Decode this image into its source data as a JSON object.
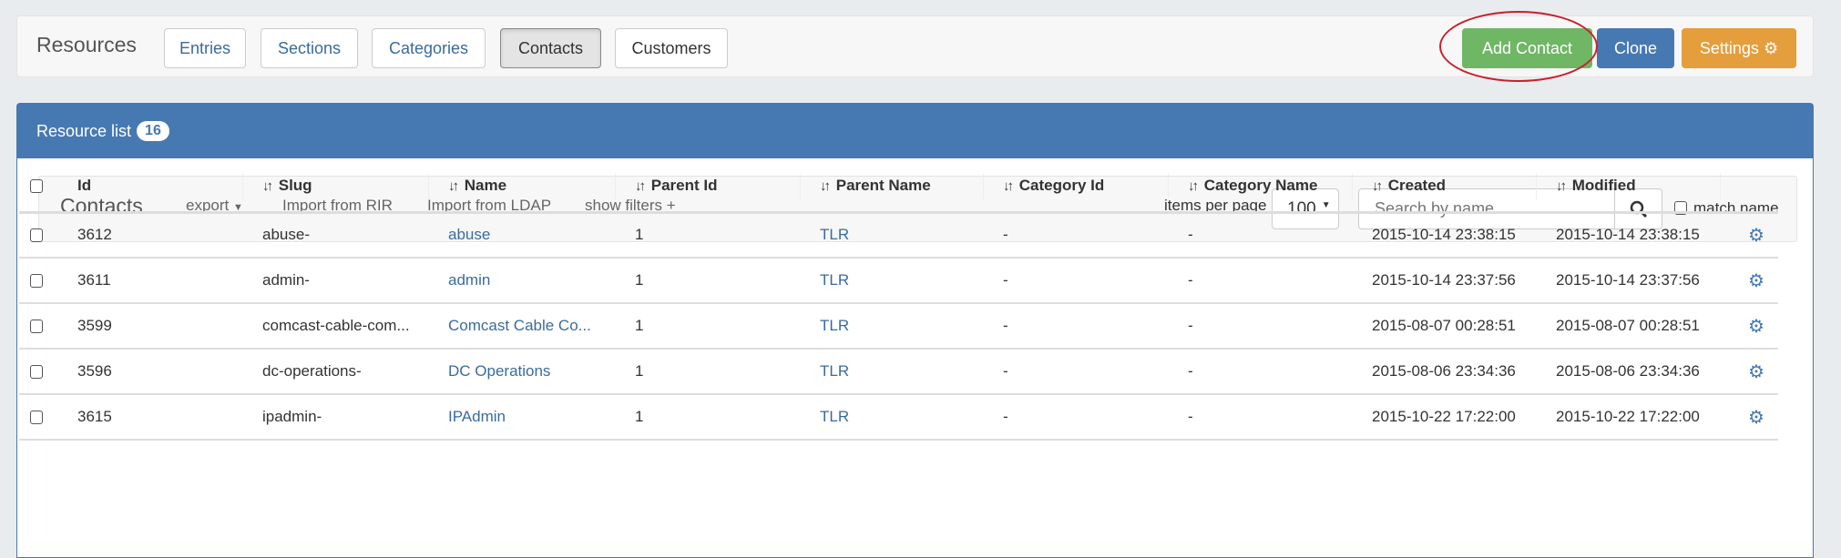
{
  "topbar": {
    "title": "Resources",
    "tabs": [
      {
        "label": "Entries"
      },
      {
        "label": "Sections"
      },
      {
        "label": "Categories"
      },
      {
        "label": "Contacts"
      },
      {
        "label": "Customers"
      }
    ],
    "add_label": "Add Contact",
    "clone_label": "Clone",
    "settings_label": "Settings"
  },
  "colors": {
    "add": "#6fb665",
    "clone": "#4679b2",
    "settings": "#e59e3c",
    "header": "#4679b2",
    "annotation": "#c8202c"
  },
  "panel": {
    "title": "Resource list",
    "count": "16"
  },
  "toolbar": {
    "title": "Contacts",
    "export": "export",
    "import_rir": "Import from RIR",
    "import_ldap": "Import from LDAP",
    "show_filters": "show filters +",
    "items_per_page_label": "items per page",
    "items_per_page": "100",
    "search_placeholder": "Search by name...",
    "match_name": "match name"
  },
  "table": {
    "columns": [
      "Id",
      "Slug",
      "Name",
      "Parent Id",
      "Parent Name",
      "Category Id",
      "Category Name",
      "Created",
      "Modified"
    ],
    "rows": [
      {
        "id": "3612",
        "slug": "abuse-",
        "name": "abuse",
        "parent_id": "1",
        "parent_name": "TLR",
        "category_id": "-",
        "category_name": "-",
        "created": "2015-10-14 23:38:15",
        "modified": "2015-10-14 23:38:15"
      },
      {
        "id": "3611",
        "slug": "admin-",
        "name": "admin",
        "parent_id": "1",
        "parent_name": "TLR",
        "category_id": "-",
        "category_name": "-",
        "created": "2015-10-14 23:37:56",
        "modified": "2015-10-14 23:37:56"
      },
      {
        "id": "3599",
        "slug": "comcast-cable-com...",
        "name": "Comcast Cable Co...",
        "parent_id": "1",
        "parent_name": "TLR",
        "category_id": "-",
        "category_name": "-",
        "created": "2015-08-07 00:28:51",
        "modified": "2015-08-07 00:28:51"
      },
      {
        "id": "3596",
        "slug": "dc-operations-",
        "name": "DC Operations",
        "parent_id": "1",
        "parent_name": "TLR",
        "category_id": "-",
        "category_name": "-",
        "created": "2015-08-06 23:34:36",
        "modified": "2015-08-06 23:34:36"
      },
      {
        "id": "3615",
        "slug": "ipadmin-",
        "name": "IPAdmin",
        "parent_id": "1",
        "parent_name": "TLR",
        "category_id": "-",
        "category_name": "-",
        "created": "2015-10-22 17:22:00",
        "modified": "2015-10-22 17:22:00"
      }
    ]
  }
}
